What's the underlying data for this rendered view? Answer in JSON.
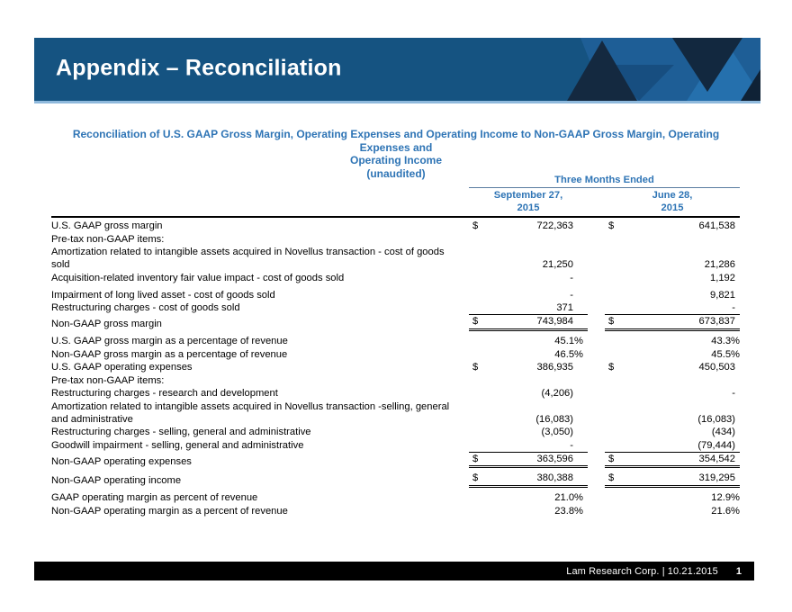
{
  "header": {
    "title": "Appendix – Reconciliation"
  },
  "subtitle": {
    "line1": "Reconciliation of U.S. GAAP Gross Margin, Operating Expenses and Operating Income to Non-GAAP Gross Margin, Operating Expenses and",
    "line2": "Operating Income",
    "line3": "(unaudited)"
  },
  "table": {
    "period_header": "Three Months Ended",
    "columns": [
      {
        "line1": "September 27,",
        "line2": "2015"
      },
      {
        "line1": "June 28,",
        "line2": "2015"
      }
    ],
    "rows": [
      {
        "label": "U.S. GAAP gross margin",
        "dollar": true,
        "v1": "722,363",
        "v2": "641,538"
      },
      {
        "label": "Pre-tax non-GAAP items:",
        "v1": "",
        "v2": ""
      },
      {
        "label": "Amortization related to intangible assets acquired in Novellus transaction - cost of goods sold",
        "v1": "21,250",
        "v2": "21,286",
        "wrap": true
      },
      {
        "label": "Acquisition-related inventory fair value impact - cost of goods sold",
        "v1": "-",
        "v2": "1,192"
      },
      {
        "label": "Impairment of long lived asset - cost of goods sold",
        "v1": "-",
        "v2": "9,821",
        "gap": true
      },
      {
        "label": "Restructuring charges - cost of goods sold",
        "v1": "371",
        "v2": "-"
      },
      {
        "label": "Non-GAAP gross margin",
        "dollar": true,
        "v1": "743,984",
        "v2": "673,837",
        "rule": true,
        "dbl": true
      },
      {
        "label": "U.S. GAAP gross margin as a percentage of revenue",
        "v1": "45.1%",
        "v2": "43.3%",
        "pct": true,
        "gap": true
      },
      {
        "label": "Non-GAAP gross margin as a percentage of revenue",
        "v1": "46.5%",
        "v2": "45.5%",
        "pct": true
      },
      {
        "label": "U.S. GAAP operating expenses",
        "dollar": true,
        "v1": "386,935",
        "v2": "450,503"
      },
      {
        "label": "Pre-tax non-GAAP items:",
        "v1": "",
        "v2": ""
      },
      {
        "label": "Restructuring charges - research and development",
        "v1": "(4,206)",
        "v2": "-"
      },
      {
        "label": "Amortization related to intangible assets acquired in Novellus transaction -selling, general and administrative",
        "v1": "(16,083)",
        "v2": "(16,083)",
        "wrap": true
      },
      {
        "label": "Restructuring charges - selling, general and administrative",
        "v1": "(3,050)",
        "v2": "(434)"
      },
      {
        "label": "Goodwill impairment -  selling, general and administrative",
        "v1": "-",
        "v2": "(79,444)"
      },
      {
        "label": "Non-GAAP operating expenses",
        "dollar": true,
        "v1": "363,596",
        "v2": "354,542",
        "rule": true,
        "dbl": true
      },
      {
        "label": "Non-GAAP operating income",
        "dollar": true,
        "v1": "380,388",
        "v2": "319,295",
        "dbl": true,
        "gap": true
      },
      {
        "label": "GAAP operating margin as percent of revenue",
        "v1": "21.0%",
        "v2": "12.9%",
        "pct": true,
        "gap": true
      },
      {
        "label": "Non-GAAP operating margin as a percent of revenue",
        "v1": "23.8%",
        "v2": "21.6%",
        "pct": true
      }
    ]
  },
  "footer": {
    "credit": "Lam Research Corp.  |  10.21.2015",
    "page": "1"
  },
  "colors": {
    "header_bar": "#155381",
    "header_underline": "#8FB9DC",
    "accent_blue_text": "#2E74B5",
    "triangle_dark": "#142940",
    "triangle_medium": "#174E80",
    "triangle_light": "#2570AD",
    "footer_bar": "#000000"
  }
}
